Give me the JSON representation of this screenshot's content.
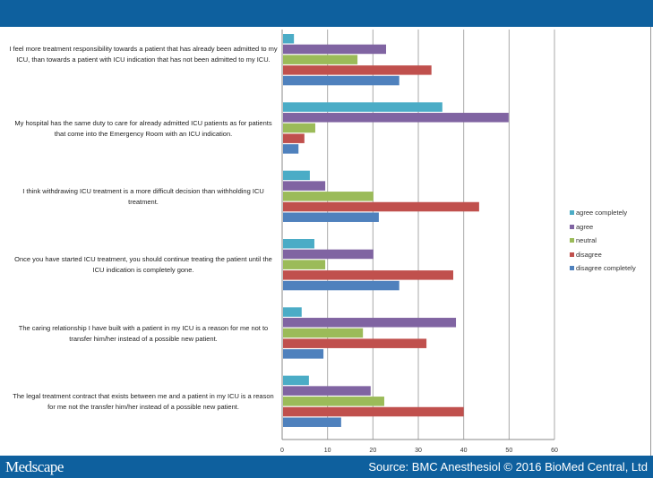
{
  "footer": {
    "logo": "Medscape",
    "source": "Source: BMC Anesthesiol © 2016 BioMed Central, Ltd"
  },
  "chart_data": {
    "type": "bar",
    "orientation": "horizontal",
    "xlim": [
      0,
      60
    ],
    "xticks": [
      "0",
      "10",
      "20",
      "30",
      "40",
      "50",
      "60"
    ],
    "grid": true,
    "legend_position": "right",
    "categories": [
      "I feel more treatment responsibility towards a patient that has already been admitted to my ICU, than towards a patient with ICU indication that has not been admitted to my ICU.",
      "My hospital has the same duty to care for already admitted ICU patients as for patients that come into the Emergency Room with an ICU indication.",
      "I think withdrawing ICU treatment is a more difficult decision than withholding ICU treatment.",
      "Once you have started ICU treatment, you should continue treating the patient until the ICU indication is completely gone.",
      "The caring relationship I have built with a patient in my ICU is a reason for me not to transfer him/her instead of a possible new patient.",
      "The legal treatment contract that exists between me and a patient in my ICU is a reason for me not the transfer him/her instead of a possible new patient."
    ],
    "series": [
      {
        "name": "agree completely",
        "color": "#4bacc6",
        "values": [
          2.4,
          35.1,
          5.9,
          6.9,
          4.1,
          5.7
        ]
      },
      {
        "name": "agree",
        "color": "#8064a2",
        "values": [
          22.7,
          49.7,
          9.3,
          19.9,
          38.1,
          19.3
        ]
      },
      {
        "name": "neutral",
        "color": "#9bbb59",
        "values": [
          16.4,
          7.1,
          19.9,
          9.3,
          17.6,
          22.3
        ]
      },
      {
        "name": "disagree",
        "color": "#c0504d",
        "values": [
          32.7,
          4.7,
          43.2,
          37.5,
          31.6,
          39.8
        ]
      },
      {
        "name": "disagree completely",
        "color": "#4f81bd",
        "values": [
          25.6,
          3.4,
          21.1,
          25.6,
          8.9,
          12.8
        ]
      }
    ]
  }
}
